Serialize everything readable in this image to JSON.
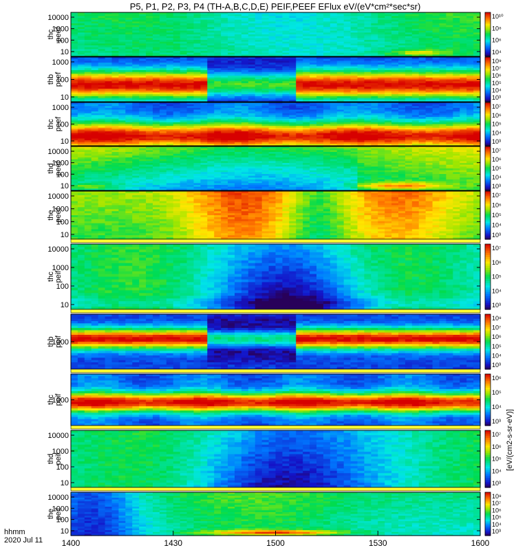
{
  "title": "P5, P1, P2, P3, P4 (TH-A,B,C,D,E) PEIF,PEEF EFlux eV/(eV*cm²*sec*sr)",
  "corner": {
    "line1": "hhmm",
    "line2": "2020 Jul 11"
  },
  "colorbar_label": "[eV/(cm2-s-sr-eV)]",
  "chart_data": {
    "type": "heatmap",
    "x_ticks": [
      "1400",
      "1430",
      "1500",
      "1530",
      "1600"
    ],
    "x_range": [
      1400,
      1600
    ],
    "panels": [
      {
        "id": "thc-peef",
        "label1": "thc",
        "label2": "peef",
        "y_ticks": [
          "10000",
          "1000",
          "100",
          "10"
        ],
        "cbar_ticks": [
          "10¹⁰",
          "10⁸",
          "10⁶",
          "10⁴"
        ]
      },
      {
        "id": "thb-peef",
        "label1": "thb",
        "label2": "peef",
        "y_ticks": [
          "1000",
          "100",
          "10"
        ],
        "cbar_ticks": [
          "10⁹",
          "10⁷",
          "10⁶",
          "10⁵",
          "10⁴",
          "10³"
        ]
      },
      {
        "id": "thc-peef-2",
        "label1": "thc",
        "label2": "peef",
        "y_ticks": [
          "1000",
          "100",
          "10"
        ],
        "cbar_ticks": [
          "10⁷",
          "10⁶",
          "10⁵",
          "10⁴",
          "10³"
        ]
      },
      {
        "id": "thd-peef",
        "label1": "thd",
        "label2": "peef",
        "y_ticks": [
          "10000",
          "1000",
          "100",
          "10"
        ],
        "cbar_ticks": [
          "10⁷",
          "10⁶",
          "10⁵",
          "10⁴",
          "10³"
        ]
      },
      {
        "id": "the-peef",
        "label1": "the",
        "label2": "peef",
        "y_ticks": [
          "10000",
          "1000",
          "100",
          "10"
        ],
        "cbar_ticks": [
          "10⁷",
          "10⁶",
          "10⁵",
          "10⁴",
          "10³"
        ]
      },
      {
        "id": "thc-peif",
        "label1": "thc",
        "label2": "peif",
        "y_ticks": [
          "10000",
          "1000",
          "100",
          "10"
        ],
        "cbar_ticks": [
          "10⁷",
          "10⁶",
          "10⁵",
          "10⁴",
          "10³"
        ]
      },
      {
        "id": "thb-peif",
        "label1": "thb",
        "label2": "peif",
        "y_ticks": [
          "1000"
        ],
        "cbar_ticks": [
          "10⁸",
          "10⁷",
          "10⁶",
          "10⁵",
          "10⁴",
          "10³"
        ]
      },
      {
        "id": "thc-peif-2",
        "label1": "thc",
        "label2": "peif",
        "y_ticks": [
          "1000"
        ],
        "cbar_ticks": [
          "10⁶",
          "10⁵",
          "10⁴",
          "10³"
        ]
      },
      {
        "id": "thd-peif",
        "label1": "thd",
        "label2": "peif",
        "y_ticks": [
          "10000",
          "1000",
          "100",
          "10"
        ],
        "cbar_ticks": [
          "10⁷",
          "10⁶",
          "10⁵",
          "10⁴",
          "10³"
        ]
      },
      {
        "id": "the-peif",
        "label1": "the",
        "label2": "peif",
        "y_ticks": [
          "10000",
          "1000",
          "100",
          "10"
        ],
        "cbar_ticks": [
          "10⁸",
          "10⁷",
          "10⁶",
          "10⁵",
          "10⁴",
          "10³"
        ]
      }
    ]
  }
}
